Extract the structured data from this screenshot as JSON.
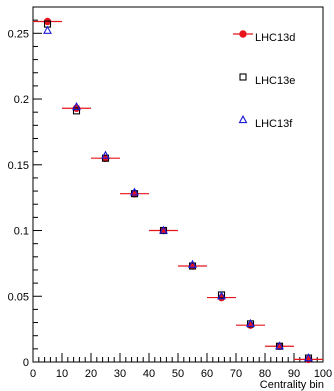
{
  "chart_data": {
    "type": "scatter",
    "title": "",
    "xlabel": "Centrality bin",
    "ylabel": "",
    "xlim": [
      0,
      100
    ],
    "ylim": [
      0,
      0.27
    ],
    "xticks": [
      "0",
      "10",
      "20",
      "30",
      "40",
      "50",
      "60",
      "70",
      "80",
      "90",
      "100"
    ],
    "yticks": [
      "0",
      "0.05",
      "0.1",
      "0.15",
      "0.2",
      "0.25"
    ],
    "ytick_values": [
      0,
      0.05,
      0.1,
      0.15,
      0.2,
      0.25
    ],
    "xtick_values": [
      0,
      10,
      20,
      30,
      40,
      50,
      60,
      70,
      80,
      90,
      100
    ],
    "x_error_half_width": 5,
    "grid": false,
    "legend_position": "top-right",
    "series": [
      {
        "name": "LHC13d",
        "marker": "filled-circle",
        "color": "#e8141c",
        "x": [
          5,
          15,
          25,
          35,
          45,
          55,
          65,
          75,
          85,
          95
        ],
        "y": [
          0.259,
          0.193,
          0.155,
          0.128,
          0.1,
          0.073,
          0.049,
          0.028,
          0.012,
          0.002
        ]
      },
      {
        "name": "LHC13e",
        "marker": "open-square",
        "color": "#000000",
        "x": [
          5,
          15,
          25,
          35,
          45,
          55,
          65,
          75,
          85,
          95
        ],
        "y": [
          0.257,
          0.191,
          0.155,
          0.128,
          0.1,
          0.073,
          0.051,
          0.029,
          0.012,
          0.003
        ]
      },
      {
        "name": "LHC13f",
        "marker": "open-triangle",
        "color": "#1a1ad6",
        "x": [
          5,
          15,
          25,
          35,
          45,
          55,
          65,
          75,
          85,
          95
        ],
        "y": [
          0.252,
          0.194,
          0.157,
          0.129,
          0.1,
          0.074,
          0.05,
          0.029,
          0.012,
          0.003
        ]
      }
    ]
  }
}
